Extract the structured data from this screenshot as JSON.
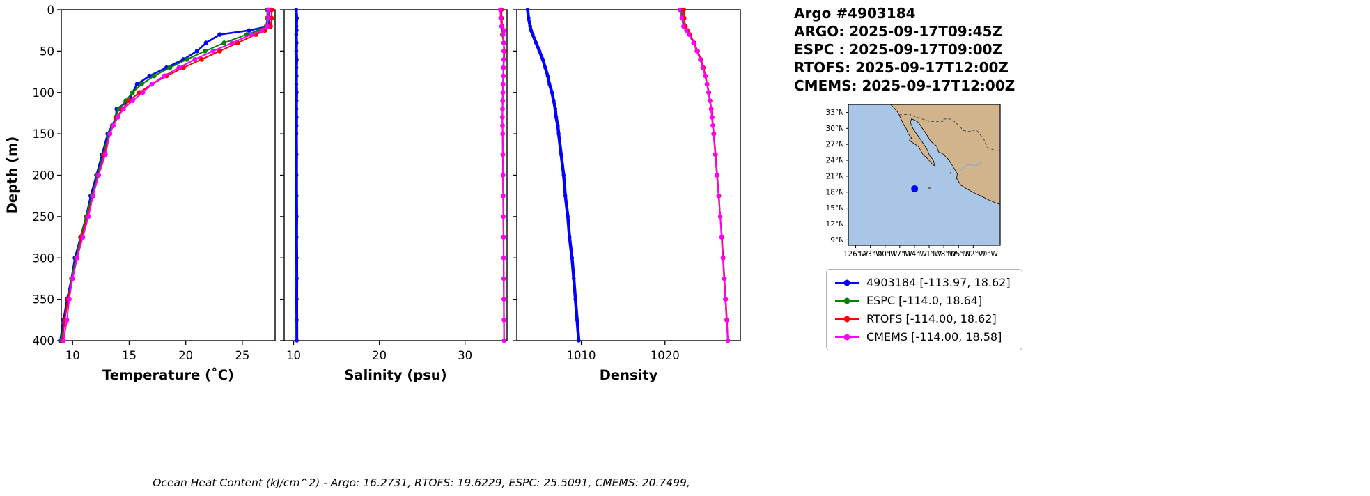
{
  "header": {
    "title": "Argo #4903184",
    "lines": [
      "ARGO: 2025-09-17T09:45Z",
      "ESPC : 2025-09-17T09:00Z",
      "RTOFS: 2025-09-17T12:00Z",
      "CMEMS: 2025-09-17T12:00Z"
    ]
  },
  "footer": {
    "text": "Ocean Heat Content (kJ/cm^2) - Argo: 16.2731,  RTOFS: 19.6229,  ESPC: 25.5091,  CMEMS: 20.7499,"
  },
  "legend": {
    "position": "below-map",
    "items": [
      {
        "label": "4903184 [-113.97, 18.62]",
        "color": "#0000ff"
      },
      {
        "label": "ESPC [-114.0, 18.64]",
        "color": "#008000"
      },
      {
        "label": "RTOFS [-114.00, 18.62]",
        "color": "#ff0000"
      },
      {
        "label": "CMEMS [-114.00, 18.58]",
        "color": "#ff00ff"
      }
    ]
  },
  "map": {
    "lon_range": [
      -127.5,
      -96.5
    ],
    "lat_range": [
      8,
      34.5
    ],
    "lat_tick_values": [
      33,
      30,
      27,
      24,
      21,
      18,
      15,
      12,
      9
    ],
    "lat_tick_labels": [
      "33°N",
      "30°N",
      "27°N",
      "24°N",
      "21°N",
      "18°N",
      "15°N",
      "12°N",
      "9°N"
    ],
    "lon_tick_values": [
      -126,
      -123,
      -120,
      -117,
      -114,
      -111,
      -108,
      -105,
      -102,
      -99
    ],
    "lon_tick_labels": [
      "126°W",
      "123°W",
      "120°W",
      "117°W",
      "114°W",
      "111°W",
      "108°W",
      "105°W",
      "102°W",
      "99°W"
    ],
    "ocean_color": "#a9c6e6",
    "land_color": "#d2b48c",
    "point": {
      "lon": -113.97,
      "lat": 18.62,
      "color": "#0000ff"
    }
  },
  "chart_data": [
    {
      "id": "temperature",
      "type": "line",
      "xlabel": "Temperature (˚C)",
      "ylabel": "Depth (m)",
      "xlim": [
        9.0,
        27.9
      ],
      "ylim": [
        0,
        400
      ],
      "y_inverted": true,
      "grid": false,
      "show_ytick_labels": true,
      "xticks": [
        10,
        15,
        20,
        25
      ],
      "yticks": [
        0,
        50,
        100,
        150,
        200,
        250,
        300,
        350,
        400
      ],
      "depths": [
        0,
        10,
        20,
        25,
        30,
        40,
        50,
        60,
        70,
        80,
        90,
        100,
        110,
        120,
        130,
        140,
        150,
        175,
        200,
        225,
        250,
        275,
        300,
        325,
        350,
        375,
        400
      ],
      "series": [
        {
          "name": "4903184",
          "color": "#0000ff",
          "line_w": 2.6,
          "marker_r": 3.2,
          "values": [
            27.4,
            27.4,
            27.3,
            25.6,
            23.0,
            21.8,
            21.0,
            19.8,
            18.3,
            16.8,
            15.7,
            15.3,
            15.0,
            13.9,
            13.8,
            13.5,
            13.1,
            12.6,
            12.1,
            11.6,
            11.2,
            10.7,
            10.2,
            9.9,
            9.5,
            9.2,
            8.9
          ]
        },
        {
          "name": "ESPC",
          "color": "#008000",
          "line_w": 2.0,
          "marker_r": 3.4,
          "values": [
            27.2,
            27.2,
            27.1,
            26.4,
            25.4,
            23.4,
            21.7,
            20.1,
            18.6,
            17.2,
            16.1,
            15.3,
            14.7,
            14.1,
            13.8,
            13.5,
            13.2,
            12.7,
            12.2,
            11.7,
            11.2,
            10.7,
            10.3,
            9.9,
            9.6,
            9.3,
            9.0
          ]
        },
        {
          "name": "RTOFS",
          "color": "#ff0000",
          "line_w": 2.0,
          "marker_r": 3.4,
          "values": [
            27.6,
            27.6,
            27.5,
            27.0,
            26.2,
            24.6,
            23.0,
            21.4,
            19.8,
            18.3,
            17.0,
            15.9,
            15.0,
            14.4,
            13.9,
            13.6,
            13.3,
            12.8,
            12.3,
            11.8,
            11.3,
            10.8,
            10.4,
            10.0,
            9.6,
            9.3,
            9.1
          ]
        },
        {
          "name": "CMEMS",
          "color": "#ff00ff",
          "line_w": 2.0,
          "marker_r": 3.4,
          "values": [
            27.3,
            27.3,
            27.2,
            26.7,
            25.8,
            24.1,
            22.4,
            20.8,
            19.4,
            18.1,
            17.0,
            16.2,
            15.3,
            14.5,
            14.0,
            13.6,
            13.3,
            12.9,
            12.3,
            11.8,
            11.4,
            10.9,
            10.4,
            10.0,
            9.7,
            9.5,
            9.2
          ]
        }
      ]
    },
    {
      "id": "salinity",
      "type": "line",
      "xlabel": "Salinity (psu)",
      "ylabel": "",
      "xlim": [
        8.9,
        34.9
      ],
      "ylim": [
        0,
        400
      ],
      "y_inverted": true,
      "grid": false,
      "show_ytick_labels": false,
      "xticks": [
        10,
        20,
        30
      ],
      "yticks": [
        0,
        50,
        100,
        150,
        200,
        250,
        300,
        350,
        400
      ],
      "depths": [
        0,
        10,
        20,
        25,
        30,
        40,
        50,
        60,
        70,
        80,
        90,
        100,
        110,
        120,
        130,
        140,
        150,
        175,
        200,
        225,
        250,
        275,
        300,
        325,
        350,
        375,
        400
      ],
      "series": [
        {
          "name": "4903184",
          "color": "#0000ff",
          "line_w": 4.0,
          "marker_r": 2.8,
          "values": [
            10.3,
            10.38,
            10.33,
            10.36,
            10.31,
            10.35,
            10.32,
            10.37,
            10.33,
            10.35,
            10.32,
            10.36,
            10.34,
            10.33,
            10.35,
            10.34,
            10.33,
            10.35,
            10.34,
            10.35,
            10.36,
            10.35,
            10.36,
            10.37,
            10.36,
            10.37,
            10.38
          ]
        },
        {
          "name": "ESPC",
          "color": "#008000",
          "line_w": 2.0,
          "marker_r": 3.2,
          "values": [
            34.15,
            34.2,
            34.3,
            34.45,
            34.35,
            34.5,
            34.55,
            34.5,
            34.45,
            34.45,
            34.4,
            34.4,
            34.38,
            34.36,
            34.35,
            34.36,
            34.38,
            34.4,
            34.42,
            34.44,
            34.46,
            34.48,
            34.5,
            34.5,
            34.52,
            34.53,
            34.55
          ]
        },
        {
          "name": "RTOFS",
          "color": "#ff0000",
          "line_w": 2.0,
          "marker_r": 3.2,
          "values": [
            34.25,
            34.28,
            34.35,
            34.55,
            34.4,
            34.52,
            34.6,
            34.55,
            34.5,
            34.48,
            34.45,
            34.42,
            34.4,
            34.38,
            34.36,
            34.37,
            34.39,
            34.41,
            34.43,
            34.45,
            34.47,
            34.49,
            34.5,
            34.52,
            34.53,
            34.54,
            34.55
          ]
        },
        {
          "name": "CMEMS",
          "color": "#ff00ff",
          "line_w": 2.0,
          "marker_r": 3.2,
          "values": [
            34.1,
            34.15,
            34.25,
            34.6,
            34.45,
            34.55,
            34.5,
            34.52,
            34.48,
            34.46,
            34.44,
            34.42,
            34.4,
            34.38,
            34.37,
            34.38,
            34.4,
            34.42,
            34.44,
            34.46,
            34.48,
            34.5,
            34.51,
            34.52,
            34.54,
            34.55,
            34.56
          ]
        }
      ]
    },
    {
      "id": "density",
      "type": "line",
      "xlabel": "Density",
      "ylabel": "",
      "xlim": [
        1002.3,
        1029.0
      ],
      "ylim": [
        0,
        400
      ],
      "y_inverted": true,
      "grid": false,
      "show_ytick_labels": false,
      "xticks": [
        1010,
        1020
      ],
      "yticks": [
        0,
        50,
        100,
        150,
        200,
        250,
        300,
        350,
        400
      ],
      "depths": [
        0,
        10,
        20,
        25,
        30,
        40,
        50,
        60,
        70,
        80,
        90,
        100,
        110,
        120,
        130,
        140,
        150,
        175,
        200,
        225,
        250,
        275,
        300,
        325,
        350,
        375,
        400
      ],
      "series": [
        {
          "name": "4903184",
          "color": "#0000ff",
          "line_w": 4.5,
          "marker_r": 2.8,
          "values": [
            1003.6,
            1003.7,
            1003.9,
            1004.0,
            1004.2,
            1004.6,
            1005.0,
            1005.4,
            1005.7,
            1006.0,
            1006.2,
            1006.5,
            1006.7,
            1006.9,
            1007.0,
            1007.2,
            1007.3,
            1007.6,
            1007.9,
            1008.1,
            1008.4,
            1008.6,
            1008.9,
            1009.1,
            1009.3,
            1009.5,
            1009.7
          ]
        },
        {
          "name": "ESPC",
          "color": "#008000",
          "line_w": 2.0,
          "marker_r": 3.2,
          "values": [
            1021.95,
            1022.1,
            1022.3,
            1022.6,
            1022.9,
            1023.4,
            1023.8,
            1024.2,
            1024.5,
            1024.8,
            1025.0,
            1025.2,
            1025.35,
            1025.5,
            1025.6,
            1025.7,
            1025.8,
            1026.0,
            1026.2,
            1026.4,
            1026.6,
            1026.8,
            1026.95,
            1027.1,
            1027.2,
            1027.35,
            1027.5
          ]
        },
        {
          "name": "RTOFS",
          "color": "#ff0000",
          "line_w": 2.0,
          "marker_r": 3.2,
          "values": [
            1022.25,
            1022.3,
            1022.45,
            1022.7,
            1023.0,
            1023.5,
            1023.9,
            1024.3,
            1024.6,
            1024.85,
            1025.05,
            1025.25,
            1025.4,
            1025.55,
            1025.65,
            1025.75,
            1025.85,
            1026.05,
            1026.25,
            1026.45,
            1026.6,
            1026.8,
            1026.95,
            1027.1,
            1027.25,
            1027.4,
            1027.5
          ]
        },
        {
          "name": "CMEMS",
          "color": "#ff00ff",
          "line_w": 2.0,
          "marker_r": 3.2,
          "values": [
            1021.75,
            1022.0,
            1022.2,
            1022.55,
            1022.85,
            1023.4,
            1023.8,
            1024.2,
            1024.5,
            1024.8,
            1025.0,
            1025.2,
            1025.35,
            1025.5,
            1025.6,
            1025.7,
            1025.8,
            1026.0,
            1026.2,
            1026.4,
            1026.6,
            1026.75,
            1026.9,
            1027.05,
            1027.2,
            1027.35,
            1027.5
          ]
        }
      ]
    }
  ]
}
